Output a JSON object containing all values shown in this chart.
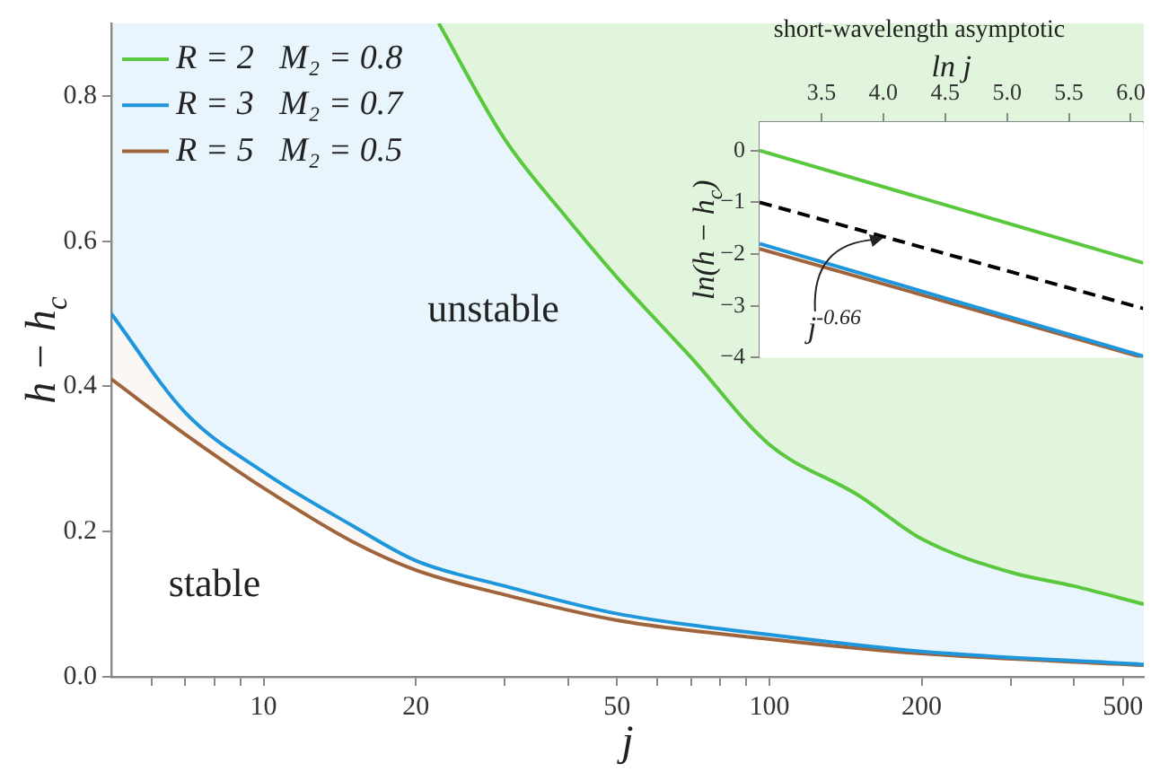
{
  "chart_data": [
    {
      "type": "line",
      "xlabel": "j",
      "ylabel": "h − h$_{c}$",
      "log": "x",
      "xlim": [
        5,
        550
      ],
      "ylim": [
        0,
        0.9
      ],
      "xticks": [
        {
          "value": 6,
          "label": null
        },
        {
          "value": 7,
          "label": null
        },
        {
          "value": 8,
          "label": null
        },
        {
          "value": 9,
          "label": null
        },
        10,
        20,
        {
          "value": 30,
          "label": null
        },
        {
          "value": 40,
          "label": null
        },
        50,
        {
          "value": 60,
          "label": null
        },
        {
          "value": 70,
          "label": null
        },
        {
          "value": 80,
          "label": null
        },
        {
          "value": 90,
          "label": null
        },
        100,
        200,
        {
          "value": 300,
          "label": null
        },
        {
          "value": 400,
          "label": null
        },
        500
      ],
      "yticks": [
        {
          "value": 0,
          "label": "0.0"
        },
        0.2,
        0.4,
        0.6,
        0.8
      ],
      "marker": "none",
      "legend": "top left",
      "grid": false,
      "annotations": [
        "unstable",
        "stable"
      ],
      "series": [
        {
          "name": "R = 2   M₂ = 0.8",
          "color": "#5ac83c",
          "x": [
            22.2,
            30,
            40,
            50,
            70,
            100,
            150,
            200,
            300,
            400,
            550
          ],
          "values": [
            0.9,
            0.74,
            0.63,
            0.55,
            0.44,
            0.32,
            0.25,
            0.19,
            0.144,
            0.125,
            0.1
          ]
        },
        {
          "name": "R = 3   M₂ = 0.7",
          "color": "#1e96dc",
          "x": [
            5,
            7,
            10,
            15,
            20,
            30,
            50,
            100,
            200,
            550
          ],
          "values": [
            0.5,
            0.364,
            0.282,
            0.208,
            0.16,
            0.125,
            0.087,
            0.058,
            0.035,
            0.017
          ]
        },
        {
          "name": "R = 5   M₂ = 0.5",
          "color": "#a0643c",
          "x": [
            5,
            7,
            10,
            15,
            20,
            30,
            50,
            100,
            200,
            550
          ],
          "values": [
            0.41,
            0.334,
            0.26,
            0.186,
            0.147,
            0.113,
            0.078,
            0.052,
            0.032,
            0.016
          ]
        }
      ]
    },
    {
      "type": "line",
      "title": "short-wavelength asymptotic",
      "xlabel": "ln j",
      "ylabel": "ln(h − h$_{c}$)",
      "xlim": [
        3.0,
        6.1
      ],
      "ylim": [
        -4,
        0.55
      ],
      "xticks": [
        3.5,
        {
          "value": 4,
          "label": "4.0"
        },
        4.5,
        {
          "value": 5,
          "label": "5.0"
        },
        5.5,
        {
          "value": 6,
          "label": "6.0"
        }
      ],
      "yticks": [
        {
          "value": -4,
          "label": "−4"
        },
        {
          "value": -3,
          "label": "−3"
        },
        {
          "value": -2,
          "label": "−2"
        },
        {
          "value": -1,
          "label": "−1"
        },
        0
      ],
      "marker": "none",
      "grid": false,
      "x": [
        3.0,
        6.1
      ],
      "annotations": [
        {
          "text": "j$^{-0.66}$",
          "x": 4.0,
          "y": -1.65
        }
      ],
      "series": [
        {
          "color": "#5ac83c",
          "values": [
            0,
            -2.17
          ]
        },
        {
          "color": "#000000",
          "line_style": "dashed",
          "values": [
            -1,
            -3.05
          ]
        },
        {
          "color": "#1e96dc",
          "values": [
            -1.8,
            -3.97
          ]
        },
        {
          "color": "#a0643c",
          "values": [
            -1.9,
            -4.0
          ]
        }
      ]
    }
  ]
}
